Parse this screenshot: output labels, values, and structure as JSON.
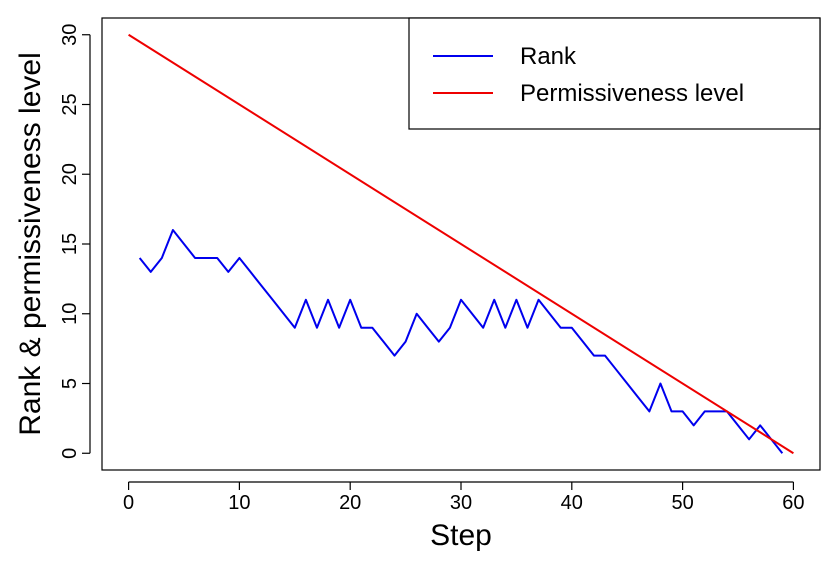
{
  "chart_data": {
    "type": "line",
    "xlabel": "Step",
    "ylabel": "Rank & permissiveness level",
    "xlim": [
      -2.4,
      62.4
    ],
    "ylim": [
      -1.2,
      31.2
    ],
    "x_ticks": [
      0,
      10,
      20,
      30,
      40,
      50,
      60
    ],
    "y_ticks": [
      0,
      5,
      10,
      15,
      20,
      25,
      30
    ],
    "grid": false,
    "legend_position": "top-right",
    "series": [
      {
        "name": "Rank",
        "color": "#0000ee",
        "x": [
          1,
          2,
          3,
          4,
          5,
          6,
          7,
          8,
          9,
          10,
          11,
          12,
          13,
          14,
          15,
          16,
          17,
          18,
          19,
          20,
          21,
          22,
          23,
          24,
          25,
          26,
          27,
          28,
          29,
          30,
          31,
          32,
          33,
          34,
          35,
          36,
          37,
          38,
          39,
          40,
          41,
          42,
          43,
          44,
          45,
          46,
          47,
          48,
          49,
          50,
          51,
          52,
          53,
          54,
          55,
          56,
          57,
          58,
          59
        ],
        "y": [
          14,
          13,
          14,
          16,
          15,
          14,
          14,
          14,
          13,
          14,
          13,
          12,
          11,
          10,
          9,
          11,
          9,
          11,
          9,
          11,
          9,
          9,
          8,
          7,
          8,
          10,
          9,
          8,
          9,
          11,
          10,
          9,
          11,
          9,
          11,
          9,
          11,
          10,
          9,
          9,
          8,
          7,
          7,
          6,
          5,
          4,
          3,
          5,
          3,
          3,
          2,
          3,
          3,
          3,
          2,
          1,
          2,
          1,
          0
        ]
      },
      {
        "name": "Permissiveness level",
        "color": "#ee0000",
        "x": [
          0,
          60
        ],
        "y": [
          30,
          0
        ]
      }
    ]
  }
}
